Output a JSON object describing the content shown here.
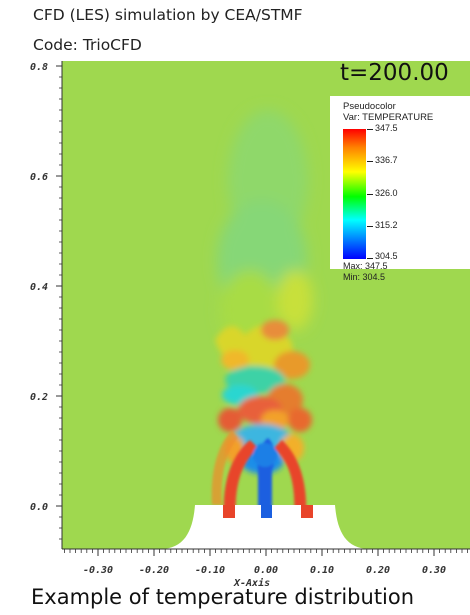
{
  "header": {
    "line1": "CFD (LES) simulation by CEA/STMF",
    "line2": "Code: TrioCFD"
  },
  "time_label": "t=200.00",
  "legend": {
    "title": "Pseudocolor",
    "variable": "Var: TEMPERATURE",
    "ticks": [
      "347.5",
      "336.7",
      "326.0",
      "315.2",
      "304.5"
    ],
    "max": "Max:  347.5",
    "min": "Min:  304.5"
  },
  "axes": {
    "x_label": "X-Axis",
    "x_ticks": [
      "-0.30",
      "-0.20",
      "-0.10",
      "0.00",
      "0.10",
      "0.20",
      "0.30"
    ],
    "y_ticks": [
      "0.8",
      "0.6",
      "0.4",
      "0.2",
      "0.0"
    ]
  },
  "caption": "Example of temperature distribution",
  "colors": {
    "background_field": "#9fd84f",
    "hot": "#e8442a",
    "cold": "#1b5fe0"
  }
}
